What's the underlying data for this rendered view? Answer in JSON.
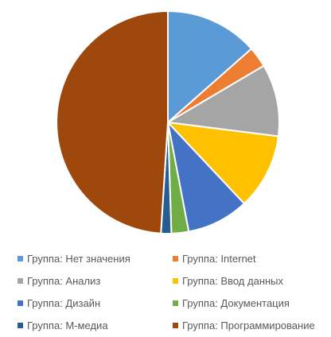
{
  "chart_data": {
    "type": "pie",
    "title": "",
    "legend_position": "bottom",
    "slices": [
      {
        "label": "Группа: Нет значения",
        "value": 13.5,
        "color": "#5B9BD5"
      },
      {
        "label": "Группа: Internet",
        "value": 3.0,
        "color": "#ED7D31"
      },
      {
        "label": "Группа: Анализ",
        "value": 10.5,
        "color": "#A5A5A5"
      },
      {
        "label": "Группа: Ввод данных",
        "value": 11.0,
        "color": "#FFC000"
      },
      {
        "label": "Группа: Дизайн",
        "value": 9.0,
        "color": "#4472C4"
      },
      {
        "label": "Группа: Документация",
        "value": 2.5,
        "color": "#70AD47"
      },
      {
        "label": "Группа: М-медиа",
        "value": 1.5,
        "color": "#255E91"
      },
      {
        "label": "Группа: Программирование",
        "value": 49.0,
        "color": "#9E480E"
      }
    ]
  }
}
